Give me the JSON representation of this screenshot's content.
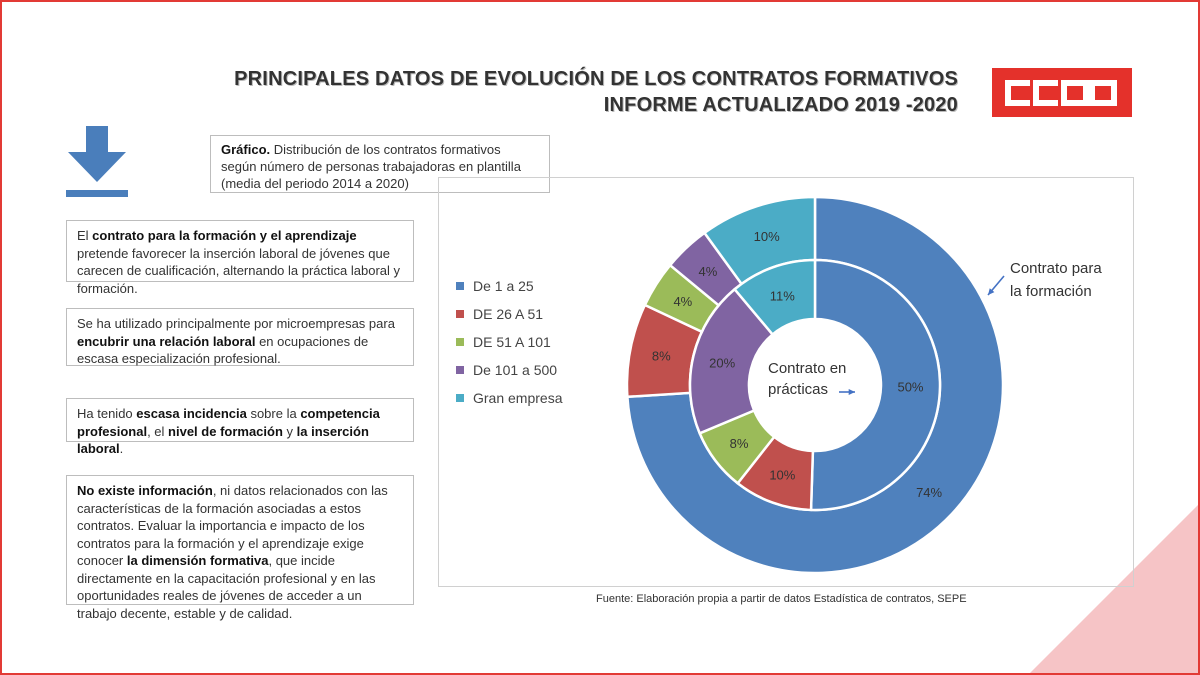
{
  "header": {
    "title_line1": "PRINCIPALES DATOS DE EVOLUCIÓN DE LOS CONTRATOS FORMATIVOS",
    "title_line2": "INFORME ACTUALIZADO 2019 -2020",
    "logo_text": "CCOO"
  },
  "caption": {
    "label": "Gráfico.",
    "text": " Distribución de los contratos formativos según número de personas trabajadoras en plantilla (media del periodo 2014 a 2020)"
  },
  "panels": {
    "p1": [
      {
        "t": "El ",
        "b": false
      },
      {
        "t": "contrato para la formación y el aprendizaje",
        "b": true
      },
      {
        "t": " pretende favorecer la inserción laboral de jóvenes que carecen de cualificación, alternando la práctica laboral y formación.",
        "b": false
      }
    ],
    "p2": [
      {
        "t": "Se ha utilizado principalmente por microempresas para ",
        "b": false
      },
      {
        "t": "encubrir una relación laboral",
        "b": true
      },
      {
        "t": " en ocupaciones de escasa especialización profesional.",
        "b": false
      }
    ],
    "p3": [
      {
        "t": "Ha tenido ",
        "b": false
      },
      {
        "t": "escasa incidencia",
        "b": true
      },
      {
        "t": " sobre la ",
        "b": false
      },
      {
        "t": "competencia profesional",
        "b": true
      },
      {
        "t": ", el ",
        "b": false
      },
      {
        "t": "nivel de formación",
        "b": true
      },
      {
        "t": " y ",
        "b": false
      },
      {
        "t": "la inserción laboral",
        "b": true
      },
      {
        "t": ".",
        "b": false
      }
    ],
    "p4": [
      {
        "t": "No existe información",
        "b": true
      },
      {
        "t": ", ni datos relacionados con las características de la formación asociadas a estos contratos. Evaluar la importancia e impacto de los contratos para la formación y el aprendizaje exige conocer ",
        "b": false
      },
      {
        "t": "la dimensión formativa",
        "b": true
      },
      {
        "t": ", que incide directamente en la capacitación profesional y en las oportunidades reales de jóvenes de acceder a un trabajo decente, estable y de calidad.",
        "b": false
      }
    ]
  },
  "chart_data": {
    "type": "pie",
    "subtype": "nested-donut",
    "categories": [
      "De 1 a 25",
      "DE 26 A 51",
      "DE 51 A 101",
      "De 101 a 500",
      "Gran empresa"
    ],
    "colors": [
      "#4f81bd",
      "#c0504d",
      "#9bbb59",
      "#8064a2",
      "#4bacc6"
    ],
    "series": [
      {
        "name": "Contrato para la formación",
        "ring": "outer",
        "values": [
          74,
          8,
          4,
          4,
          10
        ],
        "labels": [
          "74%",
          "8%",
          "4%",
          "4%",
          "10%"
        ]
      },
      {
        "name": "Contrato en prácticas",
        "ring": "inner",
        "values": [
          50,
          10,
          8,
          20,
          11
        ],
        "labels": [
          "50%",
          "10%",
          "8%",
          "20%",
          "11%"
        ]
      }
    ],
    "annotations": {
      "outer": "Contrato para la formación",
      "inner_line1": "Contrato en",
      "inner_line2": "prácticas"
    },
    "legend_position": "left"
  },
  "source": "Fuente: Elaboración propia a partir de datos Estadística de contratos, SEPE"
}
